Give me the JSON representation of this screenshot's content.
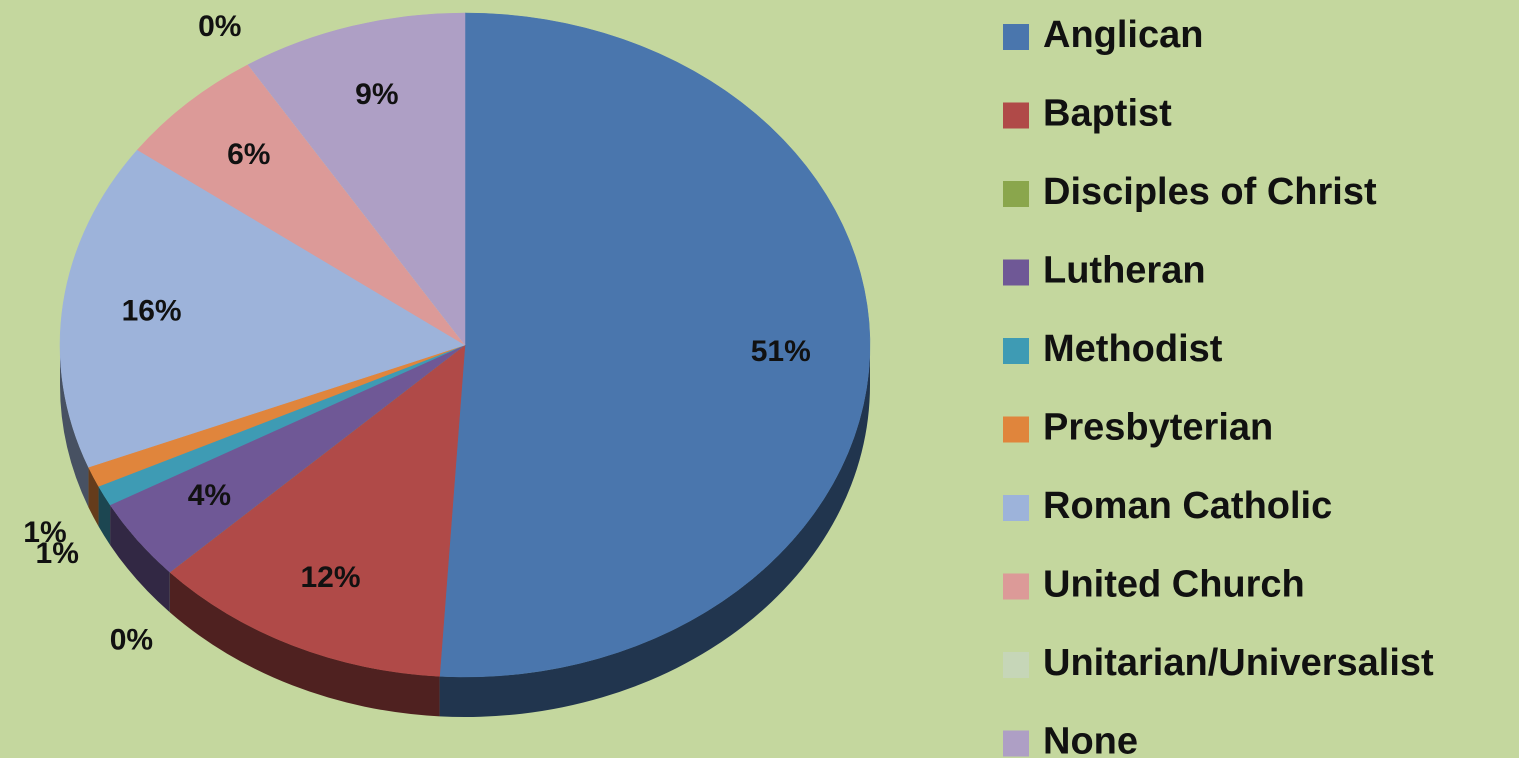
{
  "chart_data": {
    "type": "pie",
    "categories": [
      "Anglican",
      "Baptist",
      "Disciples of Christ",
      "Lutheran",
      "Methodist",
      "Presbyterian",
      "Roman Catholic",
      "United Church",
      "Unitarian/Universalist",
      "None"
    ],
    "values": [
      51,
      12,
      0,
      4,
      1,
      1,
      16,
      6,
      0,
      9
    ],
    "value_labels": [
      "51%",
      "12%",
      "0%",
      "4%",
      "1%",
      "1%",
      "16%",
      "6%",
      "0%",
      "9%"
    ],
    "colors": [
      "#4a76ad",
      "#b04a48",
      "#8aa64c",
      "#6f5896",
      "#3e9bb4",
      "#e0853c",
      "#9db3da",
      "#dc9a98",
      "#c6d6b8",
      "#ae9fc5"
    ],
    "legend": "right"
  }
}
